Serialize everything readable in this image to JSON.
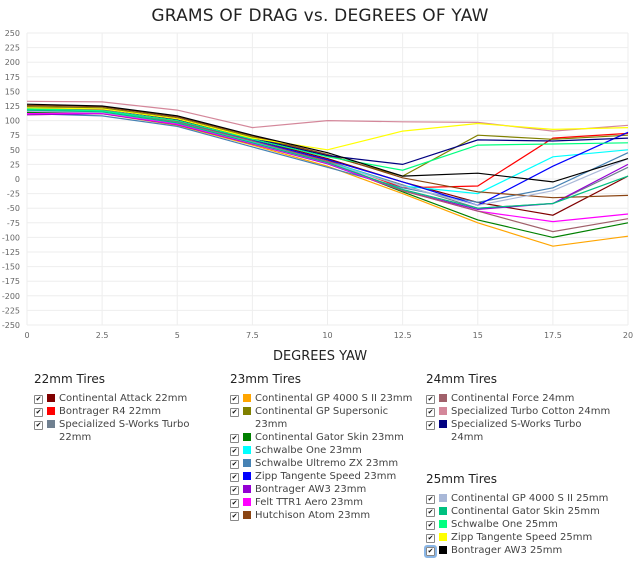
{
  "chart_data": {
    "type": "line",
    "title": "GRAMS OF DRAG vs. DEGREES OF YAW",
    "xlabel": "DEGREES YAW",
    "ylabel": "",
    "x": [
      0,
      2.5,
      5,
      7.5,
      10,
      12.5,
      15,
      17.5,
      20
    ],
    "xlim": [
      0,
      20
    ],
    "ylim": [
      -250,
      250
    ],
    "xticks": [
      "0",
      "2.5",
      "5",
      "7.5",
      "10",
      "12.5",
      "15",
      "17.5",
      "20"
    ],
    "yticks": [
      "250",
      "225",
      "200",
      "175",
      "150",
      "125",
      "100",
      "75",
      "50",
      "25",
      "0",
      "-25",
      "-50",
      "-75",
      "-100",
      "-125",
      "-150",
      "-175",
      "-200",
      "-225",
      "-250"
    ],
    "grid": true,
    "legend_position": "bottom",
    "groups": [
      {
        "title": "22mm Tires",
        "series": [
          {
            "name": "Continental Attack 22mm",
            "color": "#800000",
            "values": [
              118,
              117,
              100,
              68,
              35,
              -5,
              -40,
              -62,
              5
            ]
          },
          {
            "name": "Bontrager R4 22mm",
            "color": "#ff0000",
            "values": [
              116,
              115,
              98,
              66,
              32,
              -15,
              -12,
              70,
              78
            ]
          },
          {
            "name": "Specialized S-Works Turbo 22mm",
            "color": "#708090",
            "values": [
              114,
              113,
              96,
              64,
              30,
              -10,
              -50,
              -42,
              20
            ]
          }
        ]
      },
      {
        "title": "23mm Tires",
        "series": [
          {
            "name": "Continental GP 4000 S II 23mm",
            "color": "#ffa500",
            "values": [
              110,
              112,
              92,
              58,
              22,
              -25,
              -75,
              -115,
              -98
            ]
          },
          {
            "name": "Continental GP Supersonic 23mm",
            "color": "#808000",
            "values": [
              124,
              122,
              104,
              72,
              40,
              5,
              75,
              68,
              75
            ]
          },
          {
            "name": "Continental Gator Skin 23mm",
            "color": "#008000",
            "values": [
              114,
              113,
              95,
              62,
              28,
              -22,
              -70,
              -100,
              -75
            ]
          },
          {
            "name": "Schwalbe One 23mm",
            "color": "#00ffff",
            "values": [
              118,
              116,
              97,
              64,
              30,
              -12,
              -25,
              38,
              50
            ]
          },
          {
            "name": "Schwalbe Ultremo ZX 23mm",
            "color": "#4682b4",
            "values": [
              112,
              108,
              90,
              55,
              20,
              -15,
              -40,
              -15,
              45
            ]
          },
          {
            "name": "Zipp Tangente Speed 23mm",
            "color": "#0000ff",
            "values": [
              120,
              118,
              99,
              66,
              33,
              -5,
              -45,
              22,
              80
            ]
          },
          {
            "name": "Bontrager AW3 23mm",
            "color": "#9400d3",
            "values": [
              110,
              112,
              93,
              60,
              26,
              -20,
              -52,
              -42,
              25
            ]
          },
          {
            "name": "Felt TTR1 Aero 23mm",
            "color": "#ff00ff",
            "values": [
              112,
              113,
              94,
              61,
              27,
              -20,
              -55,
              -73,
              -60
            ]
          },
          {
            "name": "Hutchison Atom 23mm",
            "color": "#8b4513",
            "values": [
              126,
              124,
              106,
              74,
              42,
              2,
              -22,
              -32,
              -28
            ]
          }
        ]
      },
      {
        "title": "24mm Tires",
        "series": [
          {
            "name": "Continental Force 24mm",
            "color": "#a0606a",
            "values": [
              120,
              118,
              98,
              65,
              30,
              -20,
              -55,
              -90,
              -68
            ]
          },
          {
            "name": "Specialized Turbo Cotton 24mm",
            "color": "#d4879a",
            "values": [
              133,
              132,
              118,
              88,
              100,
              98,
              97,
              82,
              92
            ]
          },
          {
            "name": "Specialized S-Works Turbo 24mm",
            "color": "#000080",
            "values": [
              122,
              120,
              102,
              70,
              40,
              25,
              67,
              65,
              70
            ]
          }
        ]
      },
      {
        "title": "25mm Tires",
        "series": [
          {
            "name": "Continental GP 4000 S II 25mm",
            "color": "#a9b8d8",
            "values": [
              116,
              114,
              96,
              62,
              28,
              -12,
              -45,
              -20,
              35
            ]
          },
          {
            "name": "Continental Gator Skin 25mm",
            "color": "#00c080",
            "values": [
              118,
              115,
              96,
              62,
              28,
              -18,
              -50,
              -42,
              5
            ]
          },
          {
            "name": "Schwalbe One 25mm",
            "color": "#00ff7f",
            "values": [
              120,
              117,
              100,
              68,
              38,
              15,
              58,
              60,
              62
            ]
          },
          {
            "name": "Zipp Tangente Speed 25mm",
            "color": "#ffff00",
            "values": [
              122,
              120,
              103,
              70,
              50,
              82,
              95,
              85,
              88
            ]
          },
          {
            "name": "Bontrager AW3 25mm",
            "color": "#000000",
            "values": [
              128,
              125,
              108,
              75,
              45,
              5,
              10,
              -5,
              35
            ]
          }
        ]
      }
    ]
  }
}
